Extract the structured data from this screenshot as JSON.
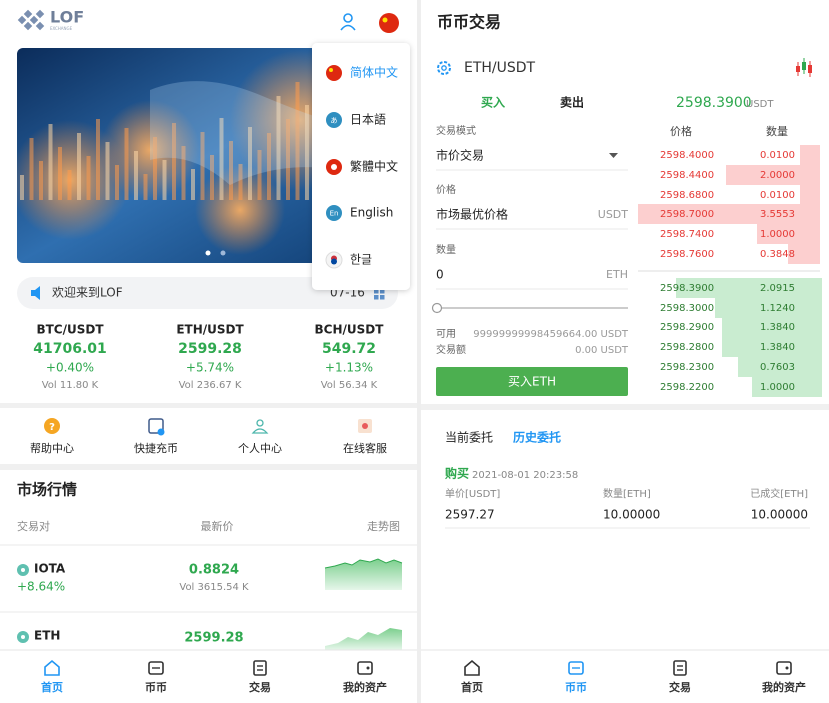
{
  "home": {
    "logo": "LOF",
    "logo_sub": "EXCHANGE",
    "language_menu": [
      {
        "label": "简体中文"
      },
      {
        "label": "日本語",
        "icon": "あ"
      },
      {
        "label": "繁體中文"
      },
      {
        "label": "English",
        "icon": "En"
      },
      {
        "label": "한글"
      }
    ],
    "notice": {
      "text": "欢迎来到LOF",
      "date": "07-16"
    },
    "tickers": [
      {
        "pair": "BTC/USDT",
        "price": "41706.01",
        "change": "+0.40%",
        "volume": "Vol 11.80 K"
      },
      {
        "pair": "ETH/USDT",
        "price": "2599.28",
        "change": "+5.74%",
        "volume": "Vol 236.67 K"
      },
      {
        "pair": "BCH/USDT",
        "price": "549.72",
        "change": "+1.13%",
        "volume": "Vol 56.34 K"
      }
    ],
    "shortcuts": [
      "帮助中心",
      "快捷充币",
      "个人中心",
      "在线客服"
    ],
    "market": {
      "title": "市场行情",
      "columns": [
        "交易对",
        "最新价",
        "走势图"
      ],
      "rows": [
        {
          "name": "IOTA",
          "change": "+8.64%",
          "price": "0.8824",
          "volume": "Vol 3615.54 K"
        },
        {
          "name": "ETH",
          "price": "2599.28"
        }
      ]
    }
  },
  "trade": {
    "title": "币币交易",
    "pair": "ETH/USDT",
    "tabs": [
      "买入",
      "卖出"
    ],
    "last_price": "2598.3900",
    "last_price_unit": "USDT",
    "form": {
      "mode_label": "交易模式",
      "mode": "市价交易",
      "price_label": "价格",
      "price": "市场最优价格",
      "price_unit": "USDT",
      "amount_label": "数量",
      "amount": "0",
      "amount_unit": "ETH",
      "available_label": "可用",
      "available": "99999999998459664.00 USDT",
      "total_label": "交易额",
      "total": "0.00 USDT",
      "submit": "买入ETH"
    },
    "order_book": {
      "columns": [
        "价格",
        "数量"
      ],
      "asks": [
        [
          "2598.4000",
          "0.0100"
        ],
        [
          "2598.4400",
          "2.0000"
        ],
        [
          "2598.6800",
          "0.0100"
        ],
        [
          "2598.7000",
          "3.5553"
        ],
        [
          "2598.7400",
          "1.0000"
        ],
        [
          "2598.7600",
          "0.3848"
        ]
      ],
      "bids": [
        [
          "2598.3900",
          "2.0915"
        ],
        [
          "2598.3000",
          "1.1240"
        ],
        [
          "2598.2900",
          "1.3840"
        ],
        [
          "2598.2800",
          "1.3840"
        ],
        [
          "2598.2300",
          "0.7603"
        ],
        [
          "2598.2200",
          "1.0000"
        ]
      ]
    },
    "orders": {
      "tabs": [
        "当前委托",
        "历史委托"
      ],
      "items": [
        {
          "side": "购买",
          "time": "2021-08-01 20:23:58",
          "columns": [
            "单价[USDT]",
            "数量[ETH]",
            "已成交[ETH]"
          ],
          "values": [
            "2597.27",
            "10.00000",
            "10.00000"
          ]
        }
      ]
    }
  },
  "tabbar": [
    "首页",
    "币币",
    "交易",
    "我的资产"
  ]
}
